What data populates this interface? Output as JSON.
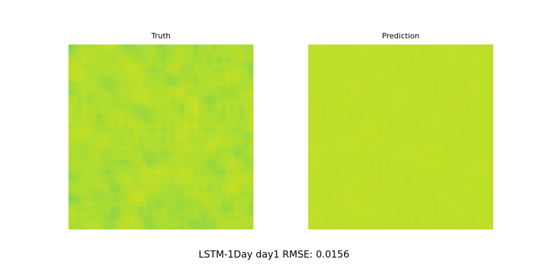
{
  "caption": "LSTM-1Day day1 RMSE: 0.0156",
  "chart_data": [
    {
      "type": "heatmap",
      "title": "Truth",
      "grid": false,
      "axes": "off",
      "colormap": "viridis",
      "cell_grid": [
        40,
        40
      ],
      "value_range": [
        0.0,
        1.0
      ],
      "typical_value_range": [
        0.78,
        0.95
      ]
    },
    {
      "type": "heatmap",
      "title": "Prediction",
      "grid": false,
      "axes": "off",
      "colormap": "viridis",
      "cell_grid": [
        40,
        40
      ],
      "value_range": [
        0.0,
        1.0
      ],
      "typical_value_range": [
        0.88,
        0.9
      ]
    }
  ]
}
